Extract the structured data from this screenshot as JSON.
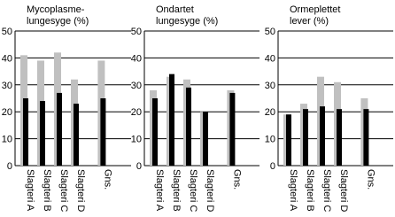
{
  "chart_data": [
    {
      "type": "bar",
      "title_lines": [
        "Mycoplasme-",
        "lungesyge (%)"
      ],
      "categories": [
        "Slagteri A",
        "Slagteri B",
        "Slagteri C",
        "Slagteri D",
        "Gns."
      ],
      "series": [
        {
          "color": "#c0c0c0",
          "values": [
            41,
            39,
            42,
            32,
            39
          ]
        },
        {
          "color": "#000000",
          "values": [
            25,
            24,
            27,
            23,
            25
          ]
        }
      ],
      "ylim": [
        0,
        50
      ],
      "yticks": [
        0,
        10,
        20,
        30,
        40,
        50
      ],
      "grid": true
    },
    {
      "type": "bar",
      "title_lines": [
        "Ondartet",
        "lungesyge (%)"
      ],
      "categories": [
        "Slagteri A",
        "Slagteri B",
        "Slagteri C",
        "Slagteri D",
        "Gns."
      ],
      "series": [
        {
          "color": "#c0c0c0",
          "values": [
            28,
            33,
            32,
            20,
            28
          ]
        },
        {
          "color": "#000000",
          "values": [
            25,
            34,
            29,
            20,
            27
          ]
        }
      ],
      "ylim": [
        0,
        50
      ],
      "yticks": [
        0,
        10,
        20,
        30,
        40,
        50
      ],
      "grid": true
    },
    {
      "type": "bar",
      "title_lines": [
        "Ormeplettet",
        "lever (%)"
      ],
      "categories": [
        "Slagteri A",
        "Slagteri B",
        "Slagteri C",
        "Slagteri D",
        "Gns."
      ],
      "series": [
        {
          "color": "#c0c0c0",
          "values": [
            19,
            23,
            33,
            31,
            25
          ]
        },
        {
          "color": "#000000",
          "values": [
            19,
            21,
            22,
            21,
            21
          ]
        }
      ],
      "ylim": [
        0,
        50
      ],
      "yticks": [
        0,
        10,
        20,
        30,
        40,
        50
      ],
      "grid": true
    }
  ]
}
